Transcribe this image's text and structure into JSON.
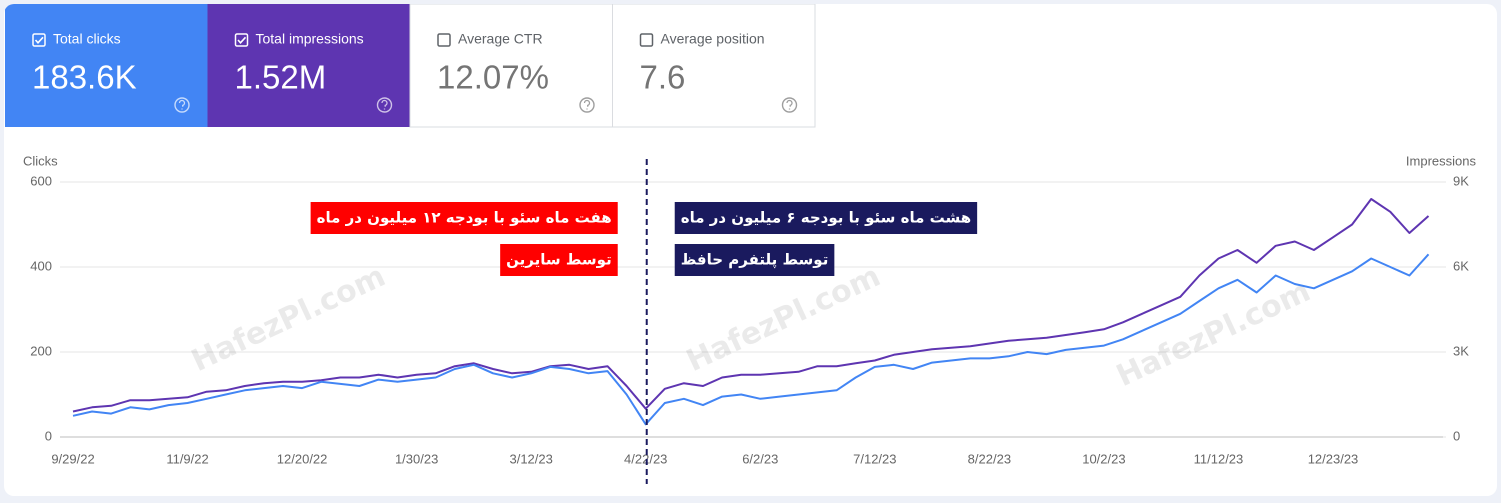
{
  "metrics": [
    {
      "label": "Total clicks",
      "value": "183.6K",
      "checked": true,
      "color": "#4285f4"
    },
    {
      "label": "Total impressions",
      "value": "1.52M",
      "checked": true,
      "color": "#5e35b1"
    },
    {
      "label": "Average CTR",
      "value": "12.07%",
      "checked": false,
      "color": "#ffffff"
    },
    {
      "label": "Average position",
      "value": "7.6",
      "checked": false,
      "color": "#ffffff"
    }
  ],
  "chart_data": {
    "type": "line",
    "y_label": "Clicks",
    "y2_label": "Impressions",
    "categories": [
      "9/29/22",
      null,
      null,
      null,
      null,
      null,
      "11/9/22",
      null,
      null,
      null,
      null,
      null,
      "12/20/22",
      null,
      null,
      null,
      null,
      null,
      "1/30/23",
      null,
      null,
      null,
      null,
      null,
      "3/12/23",
      null,
      null,
      null,
      null,
      null,
      "4/22/23",
      null,
      null,
      null,
      null,
      null,
      "6/2/23",
      null,
      null,
      null,
      null,
      null,
      "7/12/23",
      null,
      null,
      null,
      null,
      null,
      "8/22/23",
      null,
      null,
      null,
      null,
      null,
      "10/2/23",
      null,
      null,
      null,
      null,
      null,
      "11/12/23",
      null,
      null,
      null,
      null,
      null,
      "12/23/23",
      null,
      null,
      null,
      null,
      null
    ],
    "series": [
      {
        "name": "Clicks",
        "color": "#4285f4",
        "values": [
          50,
          60,
          55,
          70,
          65,
          75,
          80,
          90,
          100,
          110,
          115,
          120,
          115,
          130,
          125,
          120,
          135,
          130,
          135,
          140,
          160,
          170,
          150,
          140,
          150,
          165,
          160,
          150,
          155,
          100,
          30,
          80,
          90,
          75,
          95,
          100,
          90,
          95,
          100,
          105,
          110,
          140,
          165,
          170,
          160,
          175,
          180,
          185,
          185,
          190,
          200,
          195,
          205,
          210,
          215,
          230,
          250,
          270,
          290,
          320,
          350,
          370,
          340,
          380,
          360,
          350,
          370,
          390,
          420,
          400,
          380,
          430
        ]
      },
      {
        "name": "Impressions",
        "color": "#5e35b1",
        "axis": "y2",
        "values": [
          900,
          1050,
          1100,
          1300,
          1300,
          1350,
          1400,
          1600,
          1650,
          1800,
          1900,
          1950,
          1950,
          2000,
          2100,
          2100,
          2200,
          2100,
          2200,
          2250,
          2500,
          2600,
          2400,
          2250,
          2300,
          2500,
          2550,
          2400,
          2500,
          1800,
          1000,
          1700,
          1900,
          1800,
          2100,
          2200,
          2200,
          2250,
          2300,
          2500,
          2500,
          2600,
          2700,
          2900,
          3000,
          3100,
          3150,
          3200,
          3300,
          3400,
          3450,
          3500,
          3600,
          3700,
          3800,
          4050,
          4350,
          4650,
          4950,
          5700,
          6300,
          6600,
          6150,
          6750,
          6900,
          6600,
          7050,
          7500,
          8400,
          7950,
          7200,
          7800
        ]
      }
    ],
    "ylim": [
      0,
      600
    ],
    "yticks": [
      0,
      200,
      400,
      600
    ],
    "y2lim": [
      0,
      9000
    ],
    "y2ticks": [
      0,
      {
        "value": 3000,
        "label": "3K"
      },
      {
        "value": 6000,
        "label": "6K"
      },
      {
        "value": 9000,
        "label": "9K"
      }
    ],
    "grid": true,
    "annotations": [
      {
        "lines": [
          "هفت ماه سئو با بودجه ۱۲ میلیون در ماه",
          "توسط سایرین"
        ],
        "color": "#ff0000"
      },
      {
        "lines": [
          "هشت ماه سئو با بودجه ۶ میلیون در ماه",
          "توسط پلتفرم حافظ"
        ],
        "color": "#1a1a5e"
      }
    ],
    "watermark": "HafezPl.com"
  }
}
